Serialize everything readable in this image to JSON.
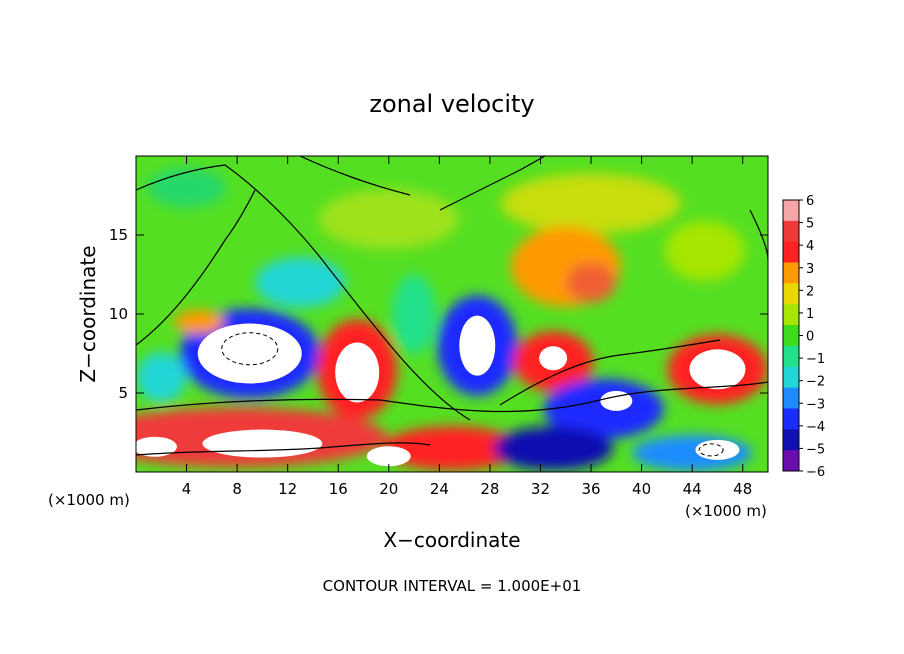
{
  "chart_data": {
    "type": "heatmap",
    "title": "zonal velocity",
    "xlabel": "X−coordinate",
    "ylabel": "Z−coordinate",
    "x_unit": "(×1000 m)",
    "z_unit": "(×1000 m)",
    "xlim": [
      0,
      50
    ],
    "ylim": [
      0,
      20
    ],
    "x_ticks": [
      "4",
      "8",
      "12",
      "16",
      "20",
      "24",
      "28",
      "32",
      "36",
      "40",
      "44",
      "48"
    ],
    "y_ticks": [
      "5",
      "10",
      "15"
    ],
    "colorbar": {
      "min": -6,
      "max": 6,
      "labels": [
        "6",
        "5",
        "4",
        "3",
        "2",
        "1",
        "0",
        "−1",
        "−2",
        "−3",
        "−4",
        "−5",
        "−6"
      ],
      "colors": [
        "#f4a6a6",
        "#f03a3a",
        "#ff2222",
        "#ff9a00",
        "#e9d900",
        "#a6e600",
        "#3ddc1c",
        "#22e08a",
        "#20d6d6",
        "#1e8cff",
        "#1a2cff",
        "#1010b0",
        "#6a0dad"
      ]
    },
    "features": [
      {
        "x": 9,
        "z": 7.5,
        "value": -6
      },
      {
        "x": 17.5,
        "z": 6.5,
        "value": 6
      },
      {
        "x": 27,
        "z": 8,
        "value": -6
      },
      {
        "x": 33,
        "z": 7,
        "value": 4
      },
      {
        "x": 46,
        "z": 6.5,
        "value": 6
      },
      {
        "x": 34,
        "z": 13.5,
        "value": 3
      },
      {
        "x": 6,
        "z": 2,
        "value": 6
      },
      {
        "x": 36,
        "z": 4,
        "value": -6
      }
    ],
    "footer": "CONTOUR INTERVAL = 1.000E+01"
  }
}
